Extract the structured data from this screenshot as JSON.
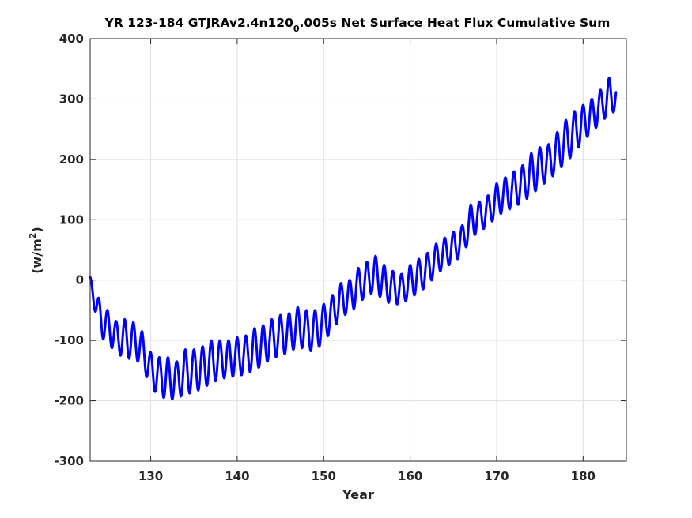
{
  "chart_data": {
    "type": "line",
    "title_parts": {
      "before_sub": "YR 123-184 GTJRAv2.4n120",
      "subscript": "0",
      "after_sub": ".005s Net Surface Heat Flux  Cumulative Sum"
    },
    "xlabel": "Year",
    "ylabel_parts": {
      "base": "(w/m",
      "superscript": "2",
      "close": ")"
    },
    "xlim": [
      123,
      185
    ],
    "ylim": [
      -300,
      400
    ],
    "xticks": [
      130,
      140,
      150,
      160,
      170,
      180
    ],
    "yticks": [
      -300,
      -200,
      -100,
      0,
      100,
      200,
      300,
      400
    ],
    "grid": true,
    "seasonal_cycle": "annual oscillation, period 1 year",
    "series": [
      {
        "color": "#0000ff",
        "annual_points": {
          "x": [
            123,
            124,
            125,
            126,
            127,
            128,
            129,
            130,
            131,
            132,
            133,
            134,
            135,
            136,
            137,
            138,
            139,
            140,
            141,
            142,
            143,
            144,
            145,
            146,
            147,
            148,
            149,
            150,
            151,
            152,
            153,
            154,
            155,
            156,
            157,
            158,
            159,
            160,
            161,
            162,
            163,
            164,
            165,
            166,
            167,
            168,
            169,
            170,
            171,
            172,
            173,
            174,
            175,
            176,
            177,
            178,
            179,
            180,
            181,
            182,
            183,
            183.8
          ],
          "upper": [
            5,
            -30,
            -50,
            -68,
            -65,
            -70,
            -85,
            -120,
            -128,
            -128,
            -135,
            -115,
            -115,
            -110,
            -100,
            -100,
            -100,
            -95,
            -92,
            -80,
            -75,
            -65,
            -58,
            -55,
            -45,
            -50,
            -50,
            -40,
            -25,
            -5,
            0,
            20,
            30,
            40,
            25,
            15,
            10,
            25,
            35,
            45,
            60,
            70,
            80,
            90,
            125,
            130,
            140,
            160,
            170,
            180,
            190,
            210,
            220,
            225,
            245,
            265,
            280,
            290,
            300,
            315,
            335,
            328
          ],
          "lower": [
            -5,
            -90,
            -105,
            -120,
            -130,
            -130,
            -140,
            -180,
            -190,
            -200,
            -195,
            -190,
            -185,
            -180,
            -170,
            -165,
            -160,
            -160,
            -155,
            -150,
            -140,
            -130,
            -125,
            -120,
            -110,
            -115,
            -120,
            -100,
            -85,
            -60,
            -55,
            -40,
            -25,
            -20,
            -35,
            -40,
            -40,
            -30,
            -20,
            -10,
            10,
            20,
            30,
            40,
            70,
            80,
            90,
            105,
            115,
            120,
            130,
            140,
            155,
            165,
            180,
            195,
            210,
            230,
            245,
            260,
            275,
            280
          ]
        }
      }
    ]
  }
}
